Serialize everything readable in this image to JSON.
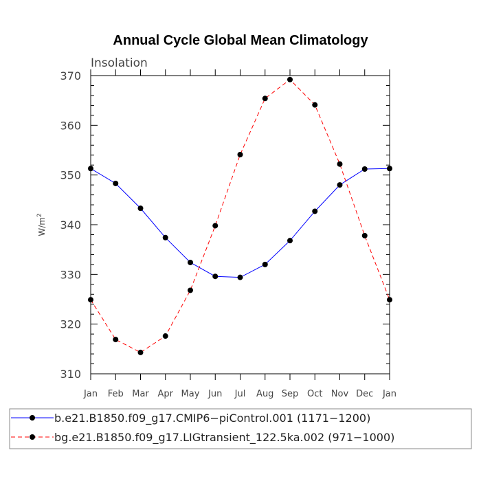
{
  "chart_data": {
    "type": "line",
    "title": "Annual Cycle Global Mean Climatology",
    "subtitle": "Insolation",
    "ylabel_base": "W/m",
    "ylabel_sup": "2",
    "xlabel": "",
    "categories": [
      "Jan",
      "Feb",
      "Mar",
      "Apr",
      "May",
      "Jun",
      "Jul",
      "Aug",
      "Sep",
      "Oct",
      "Nov",
      "Dec",
      "Jan"
    ],
    "ylim": [
      310,
      370
    ],
    "yticks": [
      310,
      320,
      330,
      340,
      350,
      360,
      370
    ],
    "grid": false,
    "legend_position": "bottom",
    "series": [
      {
        "name": "b.e21.B1850.f09_g17.CMIP6−piControl.001 (1171−1200)",
        "color": "#0000ff",
        "style": "solid",
        "values": [
          351.3,
          348.3,
          343.3,
          337.4,
          332.4,
          329.6,
          329.4,
          332.0,
          336.8,
          342.7,
          348.0,
          351.2,
          351.3
        ]
      },
      {
        "name": "bg.e21.B1850.f09_g17.LIGtransient_122.5ka.002 (971−1000)",
        "color": "#ff0000",
        "style": "dashed",
        "values": [
          324.9,
          316.9,
          314.3,
          317.6,
          326.8,
          339.8,
          354.1,
          365.4,
          369.2,
          364.1,
          352.2,
          337.8,
          324.9
        ]
      }
    ]
  }
}
